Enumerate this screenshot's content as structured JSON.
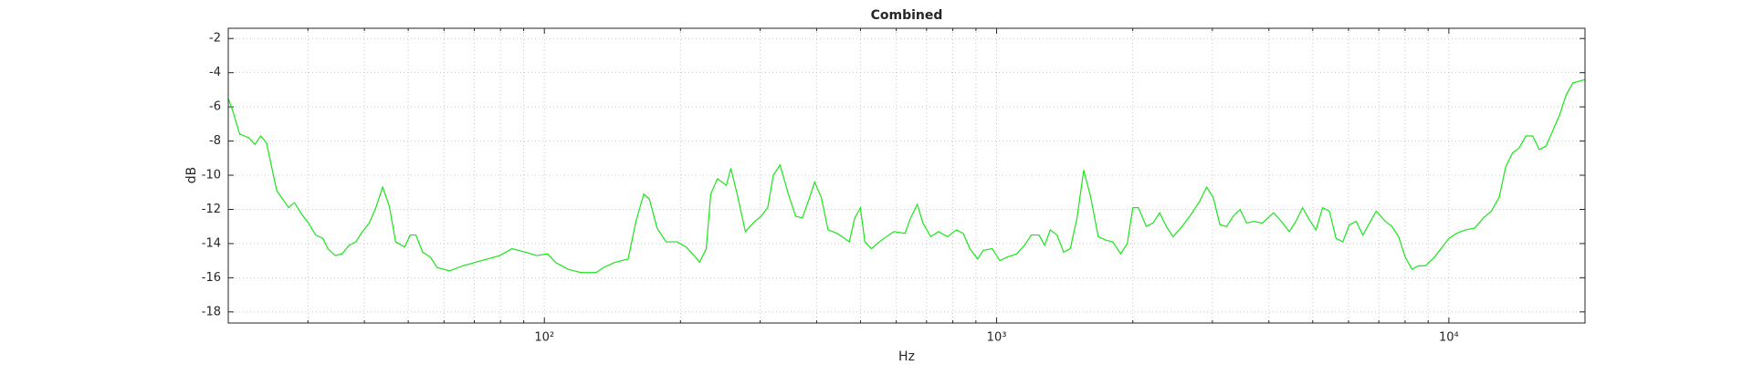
{
  "chart_data": {
    "type": "line",
    "title": "Combined",
    "x_label": "Hz",
    "y_label": "dB",
    "xscale": "log",
    "grid": true,
    "color": "#19e619",
    "xlim": [
      20,
      20000
    ],
    "ylim": [
      -18.65,
      -1.4
    ],
    "xticks": [
      {
        "value": 100,
        "label": "10²"
      },
      {
        "value": 1000,
        "label": "10³"
      },
      {
        "value": 10000,
        "label": "10⁴"
      }
    ],
    "x_minor_ticks": [
      20,
      30,
      40,
      50,
      60,
      70,
      80,
      90,
      200,
      300,
      400,
      500,
      600,
      700,
      800,
      900,
      2000,
      3000,
      4000,
      5000,
      6000,
      7000,
      8000,
      9000,
      20000
    ],
    "yticks": [
      -18,
      -16,
      -14,
      -12,
      -10,
      -8,
      -6,
      -4,
      -2
    ],
    "x": [
      20,
      20.5,
      21.2,
      22.2,
      22.9,
      23.6,
      24.3,
      25.6,
      27.2,
      28,
      29.1,
      30.1,
      31.2,
      32.4,
      33.2,
      34.5,
      35.7,
      37,
      38.3,
      39.6,
      41,
      42.4,
      43.9,
      45.4,
      46.9,
      49.1,
      50.5,
      52,
      53.8,
      56,
      57.9,
      61.7,
      66,
      70.3,
      74.8,
      79.7,
      84.8,
      90.8,
      96.1,
      101.7,
      105.8,
      112.7,
      120.6,
      129.9,
      135.2,
      143.1,
      153.2,
      159.4,
      165.9,
      170.7,
      177.6,
      185.8,
      196.7,
      205.9,
      214.3,
      220.4,
      228,
      233.3,
      241.4,
      252.6,
      258.4,
      267.4,
      278.3,
      289.6,
      301.3,
      311.8,
      320.8,
      331.9,
      347.3,
      359.4,
      371.9,
      384.8,
      395.9,
      409.6,
      423.9,
      443.6,
      461.6,
      472.2,
      485.8,
      499.8,
      511.3,
      529,
      544.3,
      563.2,
      592.8,
      627.5,
      645.5,
      667.9,
      687.1,
      715.1,
      743.9,
      778.6,
      815.1,
      843.4,
      872.7,
      907.8,
      933.9,
      977.4,
      1017,
      1053,
      1108,
      1153,
      1193,
      1241,
      1277,
      1314,
      1360,
      1407,
      1455,
      1506,
      1558,
      1612,
      1678,
      1746,
      1807,
      1880,
      1945,
      2001,
      2059,
      2143,
      2217,
      2294,
      2373,
      2455,
      2570,
      2690,
      2815,
      2913,
      3013,
      3118,
      3226,
      3337,
      3453,
      3573,
      3697,
      3869,
      4097,
      4263,
      4436,
      4589,
      4748,
      4913,
      5083,
      5260,
      5442,
      5631,
      5826,
      6028,
      6238,
      6454,
      6678,
      6910,
      7233,
      7483,
      7743,
      8012,
      8289,
      8577,
      8875,
      9289,
      9611,
      10000,
      10407,
      10889,
      11397,
      11926,
      12412,
      12915,
      13363,
      13826,
      14305,
      14805,
      15319,
      15849,
      16399,
      16967,
      17555,
      18168,
      18798,
      20000
    ],
    "values": [
      -5.5,
      -6.3,
      -7.6,
      -7.8,
      -8.2,
      -7.7,
      -8.1,
      -10.9,
      -11.9,
      -11.6,
      -12.3,
      -12.8,
      -13.5,
      -13.7,
      -14.3,
      -14.7,
      -14.6,
      -14.1,
      -13.9,
      -13.3,
      -12.8,
      -11.9,
      -10.7,
      -11.8,
      -13.9,
      -14.2,
      -13.5,
      -13.5,
      -14.5,
      -14.8,
      -15.4,
      -15.6,
      -15.3,
      -15.1,
      -14.9,
      -14.7,
      -14.3,
      -14.5,
      -14.7,
      -14.6,
      -15.1,
      -15.5,
      -15.7,
      -15.7,
      -15.4,
      -15.1,
      -14.9,
      -12.7,
      -11.1,
      -11.4,
      -13.1,
      -13.9,
      -13.9,
      -14.2,
      -14.7,
      -15.1,
      -14.3,
      -11.1,
      -10.2,
      -10.6,
      -9.6,
      -11.2,
      -13.3,
      -12.8,
      -12.4,
      -11.9,
      -10,
      -9.4,
      -11.2,
      -12.4,
      -12.5,
      -11.4,
      -10.4,
      -11.3,
      -13.2,
      -13.4,
      -13.7,
      -13.9,
      -12.5,
      -11.9,
      -13.9,
      -14.3,
      -14,
      -13.7,
      -13.3,
      -13.4,
      -12.5,
      -11.7,
      -12.8,
      -13.6,
      -13.3,
      -13.6,
      -13.2,
      -13.4,
      -14.3,
      -14.9,
      -14.4,
      -14.3,
      -15,
      -14.8,
      -14.6,
      -14.1,
      -13.5,
      -13.5,
      -14.1,
      -13.2,
      -13.5,
      -14.5,
      -14.3,
      -12.5,
      -9.7,
      -11.2,
      -13.6,
      -13.8,
      -13.9,
      -14.6,
      -14,
      -11.9,
      -11.9,
      -13,
      -12.8,
      -12.2,
      -13,
      -13.6,
      -13,
      -12.3,
      -11.5,
      -10.7,
      -11.3,
      -12.9,
      -13,
      -12.4,
      -12,
      -12.8,
      -12.7,
      -12.8,
      -12.2,
      -12.7,
      -13.3,
      -12.7,
      -11.9,
      -12.6,
      -13.2,
      -11.9,
      -12.1,
      -13.7,
      -13.9,
      -12.9,
      -12.7,
      -13.5,
      -12.8,
      -12.1,
      -12.7,
      -13,
      -13.6,
      -14.8,
      -15.5,
      -15.3,
      -15.3,
      -14.8,
      -14.3,
      -13.7,
      -13.4,
      -13.2,
      -13.1,
      -12.5,
      -12.1,
      -11.3,
      -9.5,
      -8.7,
      -8.4,
      -7.7,
      -7.7,
      -8.5,
      -8.3,
      -7.4,
      -6.5,
      -5.3,
      -4.6,
      -4.4
    ]
  }
}
